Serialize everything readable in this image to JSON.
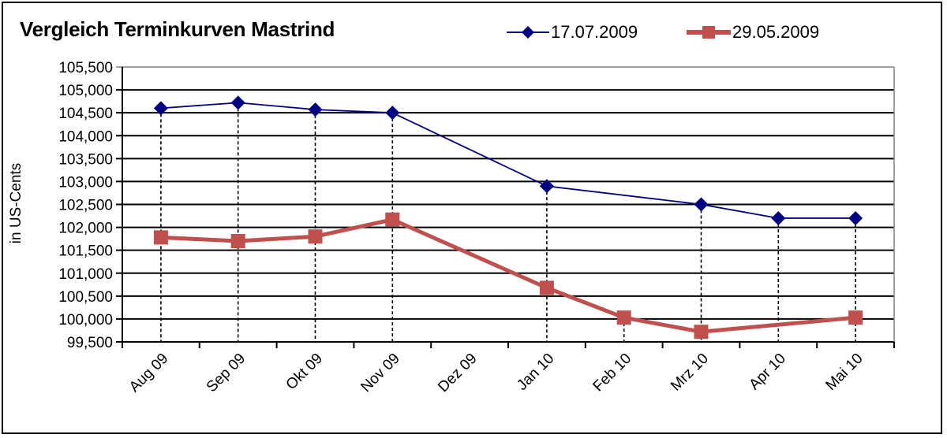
{
  "chart": {
    "title": "Vergleich Terminkurven Mastrind",
    "ylabel": "in US-Cents",
    "legend": [
      {
        "label": "17.07.2009",
        "color": "#000080",
        "marker": "diamond"
      },
      {
        "label": "29.05.2009",
        "color": "#C0504D",
        "marker": "square"
      }
    ]
  },
  "chart_data": {
    "type": "line",
    "title": "Vergleich Terminkurven Mastrind",
    "xlabel": "",
    "ylabel": "in US-Cents",
    "categories": [
      "Aug 09",
      "Sep 09",
      "Okt 09",
      "Nov 09",
      "Dez 09",
      "Jan 10",
      "Feb 10",
      "Mrz 10",
      "Apr 10",
      "Mai 10"
    ],
    "series": [
      {
        "name": "17.07.2009",
        "color": "#000080",
        "marker": "diamond",
        "values": [
          104.6,
          104.72,
          104.57,
          104.5,
          null,
          102.9,
          null,
          102.5,
          102.2,
          102.2
        ]
      },
      {
        "name": "29.05.2009",
        "color": "#C0504D",
        "marker": "square",
        "values": [
          101.78,
          101.7,
          101.8,
          102.17,
          null,
          100.68,
          100.03,
          99.72,
          null,
          100.03
        ]
      }
    ],
    "ylim": [
      99.5,
      105.5
    ],
    "yticks": [
      "99,500",
      "100,000",
      "100,500",
      "101,000",
      "101,500",
      "102,000",
      "102,500",
      "103,000",
      "103,500",
      "104,000",
      "104,500",
      "105,000",
      "105,500"
    ],
    "grid": {
      "horizontal": true,
      "vertical_drop_lines": true
    },
    "legend_position": "top-right"
  }
}
